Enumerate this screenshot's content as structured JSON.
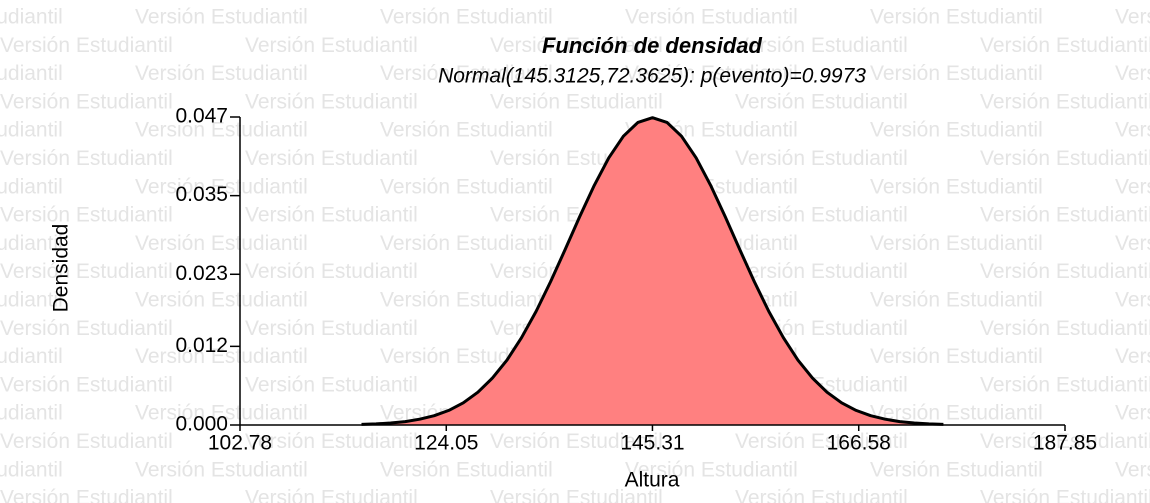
{
  "chart_data": {
    "type": "area",
    "title": "Función de densidad",
    "subtitle": "Normal(145.3125,72.3625): p(evento)=0.9973",
    "watermark": "Versión Estudiantil",
    "xlabel": "Altura",
    "ylabel": "Densidad",
    "xlim": [
      102.78,
      187.85
    ],
    "xticks": [
      102.78,
      124.05,
      145.31,
      166.58,
      187.85
    ],
    "ylim": [
      0,
      0.047
    ],
    "yticks": [
      {
        "value": 0,
        "label": "0.000"
      },
      0.012,
      0.023,
      0.035,
      0.047
    ],
    "color": "#ff8080",
    "line_color": "#000000",
    "x": [
      115.31,
      116.81,
      118.31,
      119.81,
      121.31,
      122.81,
      124.31,
      125.81,
      127.31,
      128.81,
      130.31,
      131.81,
      133.31,
      134.81,
      136.31,
      137.81,
      139.31,
      140.81,
      142.31,
      143.81,
      145.31,
      146.81,
      148.31,
      149.81,
      151.31,
      152.81,
      154.31,
      155.81,
      157.31,
      158.81,
      160.31,
      161.81,
      163.31,
      164.81,
      166.31,
      167.81,
      169.31,
      170.81,
      172.31,
      173.81,
      175.31
    ],
    "values": [
      9e-05,
      0.00017,
      0.0003,
      0.00052,
      0.00088,
      0.00142,
      0.00223,
      0.00339,
      0.005,
      0.00715,
      0.00991,
      0.01332,
      0.01734,
      0.02189,
      0.0268,
      0.0318,
      0.03657,
      0.04078,
      0.04407,
      0.04618,
      0.0469,
      0.04618,
      0.04407,
      0.04078,
      0.03657,
      0.0318,
      0.0268,
      0.02189,
      0.01734,
      0.01332,
      0.00991,
      0.00715,
      0.005,
      0.00339,
      0.00223,
      0.00142,
      0.00088,
      0.00052,
      0.0003,
      0.00017,
      9e-05
    ]
  }
}
